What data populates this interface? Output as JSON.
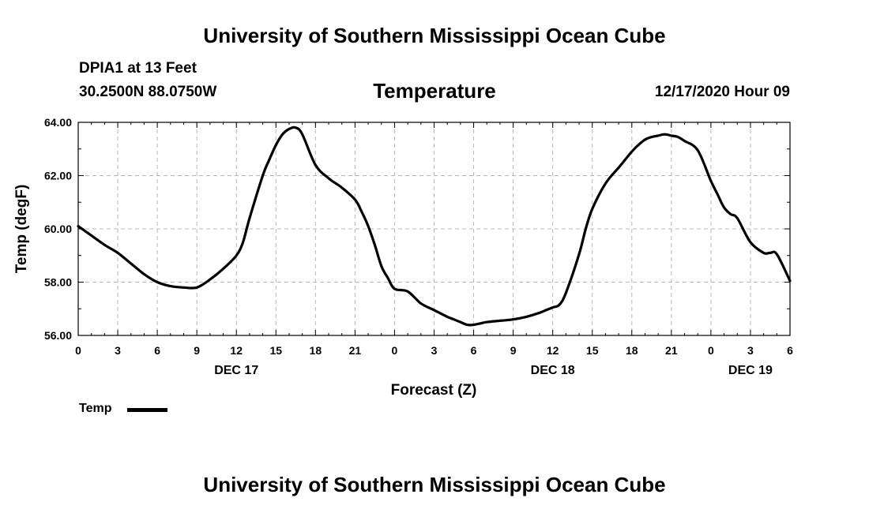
{
  "header": {
    "top_title": "University of Southern Mississippi Ocean Cube",
    "bottom_title": "University of Southern Mississippi Ocean Cube",
    "station": "DPIA1 at 13 Feet",
    "location": "30.2500N 88.0750W",
    "variable": "Temperature",
    "issued": "12/17/2020 Hour 09"
  },
  "legend": {
    "label": "Temp"
  },
  "chart_data": {
    "type": "line",
    "title": "Temperature",
    "xlabel": "Forecast (Z)",
    "ylabel": "Temp (degF)",
    "ylim": [
      56,
      64
    ],
    "xlim": [
      0,
      54
    ],
    "grid": true,
    "x_unit": "hours since DEC 17 00Z",
    "y_ticks": [
      "56.00",
      "58.00",
      "60.00",
      "62.00",
      "64.00"
    ],
    "y_tick_values": [
      56,
      58,
      60,
      62,
      64
    ],
    "x_ticks": [
      {
        "hour": 0,
        "label": "0"
      },
      {
        "hour": 3,
        "label": "3"
      },
      {
        "hour": 6,
        "label": "6"
      },
      {
        "hour": 9,
        "label": "9"
      },
      {
        "hour": 12,
        "label": "12"
      },
      {
        "hour": 15,
        "label": "15"
      },
      {
        "hour": 18,
        "label": "18"
      },
      {
        "hour": 21,
        "label": "21"
      },
      {
        "hour": 24,
        "label": "0"
      },
      {
        "hour": 27,
        "label": "3"
      },
      {
        "hour": 30,
        "label": "6"
      },
      {
        "hour": 33,
        "label": "9"
      },
      {
        "hour": 36,
        "label": "12"
      },
      {
        "hour": 39,
        "label": "15"
      },
      {
        "hour": 42,
        "label": "18"
      },
      {
        "hour": 45,
        "label": "21"
      },
      {
        "hour": 48,
        "label": "0"
      },
      {
        "hour": 51,
        "label": "3"
      },
      {
        "hour": 54,
        "label": "6"
      }
    ],
    "date_labels": [
      {
        "hour": 12,
        "label": "DEC 17"
      },
      {
        "hour": 36,
        "label": "DEC 18"
      },
      {
        "hour": 51,
        "label": "DEC 19"
      }
    ],
    "series": [
      {
        "name": "Temp",
        "color": "#000000",
        "x": [
          0,
          1,
          2,
          3,
          4,
          5,
          6,
          7,
          8,
          9,
          10,
          11,
          12,
          12.5,
          13,
          14,
          14.5,
          15,
          15.5,
          16,
          16.5,
          17,
          18,
          19,
          20,
          21,
          21.5,
          22,
          22.5,
          23,
          23.5,
          24,
          25,
          26,
          27,
          28,
          28.5,
          29,
          29.5,
          30,
          31,
          32,
          33,
          34,
          35,
          35.5,
          36,
          36.5,
          37,
          38,
          38.5,
          39,
          40,
          41,
          41.5,
          42,
          42.5,
          43,
          43.5,
          44,
          44.5,
          45,
          45.5,
          46,
          47,
          48,
          48.5,
          49,
          49.5,
          50,
          51,
          52,
          52.5,
          53,
          54
        ],
        "values": [
          60.1,
          59.75,
          59.4,
          59.1,
          58.7,
          58.3,
          58.0,
          57.85,
          57.8,
          57.8,
          58.1,
          58.5,
          59.0,
          59.5,
          60.4,
          62.0,
          62.6,
          63.15,
          63.55,
          63.75,
          63.8,
          63.55,
          62.4,
          61.9,
          61.55,
          61.1,
          60.65,
          60.1,
          59.4,
          58.6,
          58.15,
          57.75,
          57.65,
          57.2,
          56.95,
          56.7,
          56.6,
          56.5,
          56.4,
          56.4,
          56.5,
          56.55,
          56.6,
          56.7,
          56.85,
          56.95,
          57.05,
          57.15,
          57.6,
          59.05,
          60.0,
          60.75,
          61.7,
          62.3,
          62.6,
          62.9,
          63.15,
          63.35,
          63.45,
          63.5,
          63.55,
          63.5,
          63.45,
          63.3,
          62.95,
          61.8,
          61.3,
          60.8,
          60.55,
          60.4,
          59.5,
          59.1,
          59.1,
          59.05,
          58.05
        ]
      }
    ]
  }
}
